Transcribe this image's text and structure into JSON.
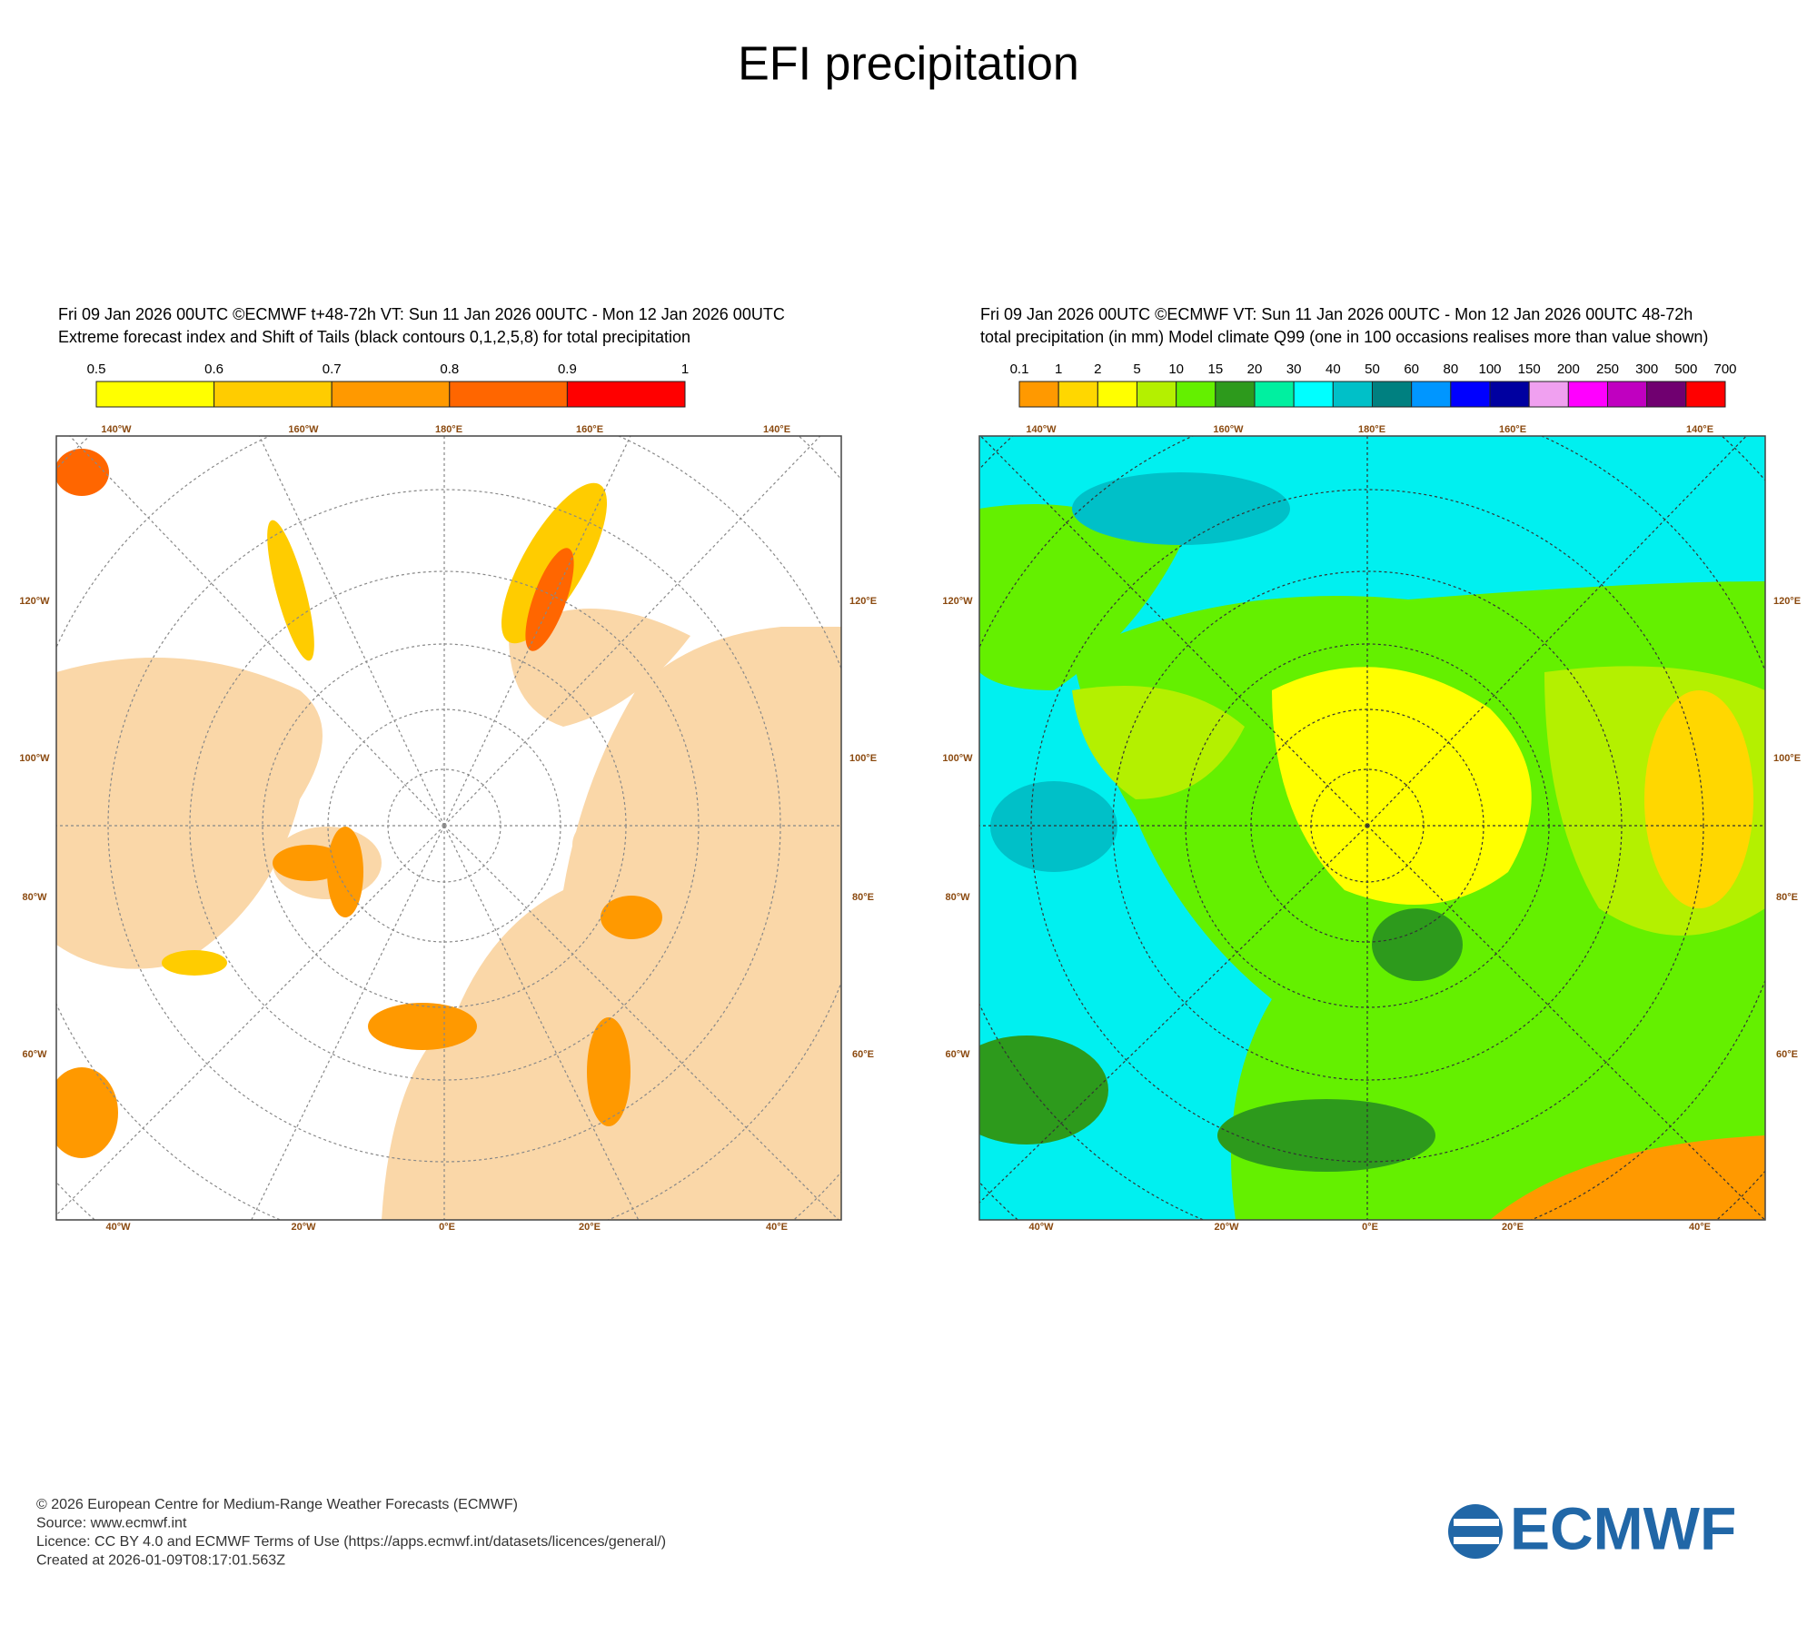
{
  "title": "EFI precipitation",
  "panels": [
    {
      "header": [
        "Fri 09 Jan 2026 00UTC ©ECMWF t+48-72h  VT: Sun 11 Jan 2026 00UTC - Mon 12 Jan 2026 00UTC",
        "Extreme forecast index and Shift of Tails (black contours 0,1,2,5,8) for total precipitation"
      ],
      "colorbar": {
        "labels": [
          "0.5",
          "0.6",
          "0.7",
          "0.8",
          "0.9",
          "1"
        ],
        "colors": [
          "#ffff00",
          "#ffcc00",
          "#ff9900",
          "#ff6600",
          "#ff0000"
        ]
      },
      "map_labels": {
        "top": [
          "140°W",
          "160°W",
          "180°E",
          "160°E",
          "140°E"
        ],
        "bottom": [
          "40°W",
          "20°W",
          "0°E",
          "20°E",
          "40°E"
        ],
        "left": [
          "120°W",
          "100°W",
          "80°W",
          "60°W"
        ],
        "right": [
          "120°E",
          "100°E",
          "80°E",
          "60°E"
        ]
      }
    },
    {
      "header": [
        "Fri 09 Jan 2026 00UTC ©ECMWF VT: Sun 11 Jan 2026 00UTC - Mon 12 Jan 2026 00UTC   48-72h",
        "total precipitation (in mm)  Model climate Q99 (one in 100 occasions realises more than value shown)"
      ],
      "colorbar": {
        "labels": [
          "0.1",
          "1",
          "2",
          "5",
          "10",
          "15",
          "20",
          "30",
          "40",
          "50",
          "60",
          "80",
          "100",
          "150",
          "200",
          "250",
          "300",
          "500",
          "700"
        ],
        "colors": [
          "#ff9900",
          "#ffd700",
          "#ffff00",
          "#b4f000",
          "#64f000",
          "#2d9a1c",
          "#00f0a0",
          "#00ffff",
          "#00c0c8",
          "#008080",
          "#0096ff",
          "#0000ff",
          "#0000a0",
          "#f0a0f0",
          "#ff00ff",
          "#c000c0",
          "#700070",
          "#ff0000"
        ]
      },
      "map_labels": {
        "top": [
          "140°W",
          "160°W",
          "180°E",
          "160°E",
          "140°E"
        ],
        "bottom": [
          "40°W",
          "20°W",
          "0°E",
          "20°E",
          "40°E"
        ],
        "left": [
          "120°W",
          "100°W",
          "80°W",
          "60°W"
        ],
        "right": [
          "120°E",
          "100°E",
          "80°E",
          "60°E"
        ]
      }
    }
  ],
  "footer": [
    "© 2026 European Centre for Medium-Range Weather Forecasts (ECMWF)",
    "Source: www.ecmwf.int",
    "Licence: CC BY 4.0 and ECMWF Terms of Use (https://apps.ecmwf.int/datasets/licences/general/)",
    "Created at 2026-01-09T08:17:01.563Z"
  ],
  "logo": "ECMWF"
}
